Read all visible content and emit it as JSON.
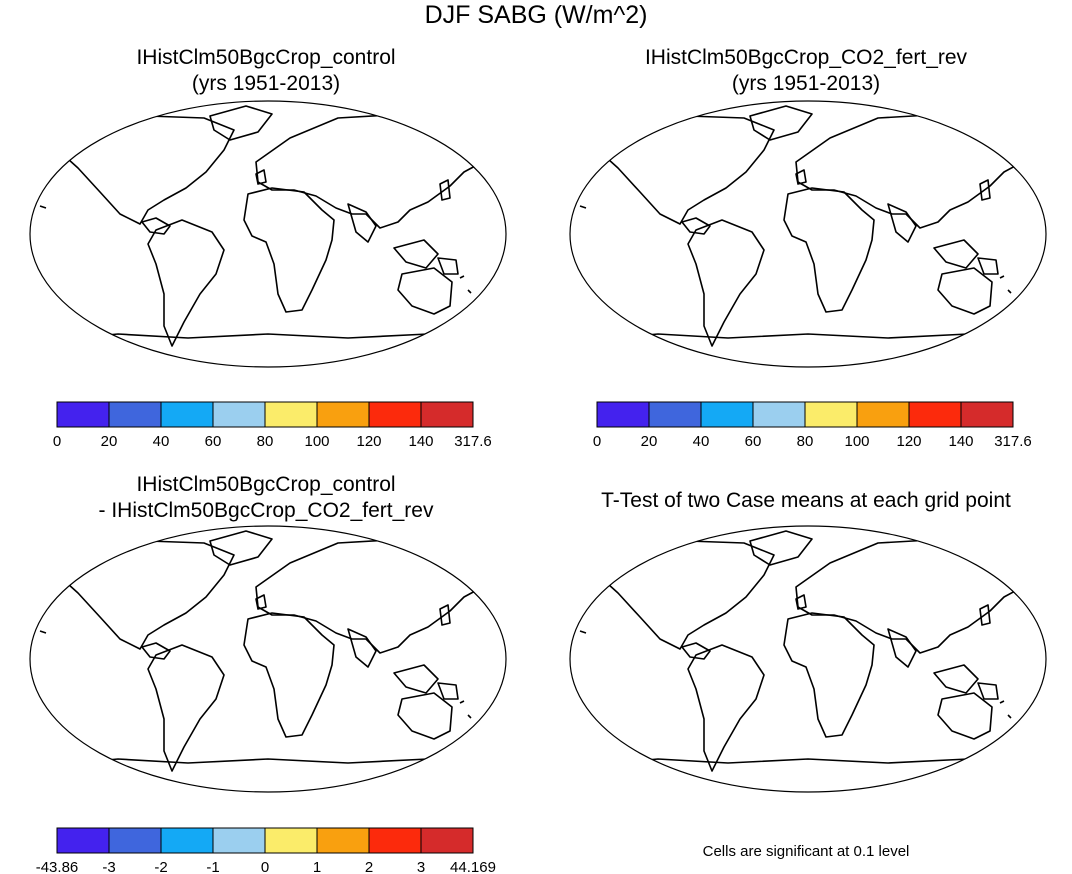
{
  "title": "DJF SABG (W/m^2)",
  "panels": [
    {
      "id": "p1",
      "title_line1": "IHistClm50BgcCrop_control",
      "title_line2": "(yrs 1951-2013)"
    },
    {
      "id": "p2",
      "title_line1": "IHistClm50BgcCrop_CO2_fert_rev",
      "title_line2": "(yrs 1951-2013)"
    },
    {
      "id": "p3",
      "title_line1": "IHistClm50BgcCrop_control",
      "title_line2": "- IHistClm50BgcCrop_CO2_fert_rev"
    },
    {
      "id": "p4",
      "title_line1": "T-Test of two Case means at each grid point",
      "title_line2": ""
    }
  ],
  "colorbars": {
    "absolute": {
      "colors": [
        "#4422ee",
        "#3f66dd",
        "#14a9f5",
        "#9bcfef",
        "#fbec6a",
        "#f9a00f",
        "#fc2a0c",
        "#d52b2b"
      ],
      "labels": [
        "0",
        "20",
        "40",
        "60",
        "80",
        "100",
        "120",
        "140",
        "317.6"
      ]
    },
    "difference": {
      "colors": [
        "#4422ee",
        "#3f66dd",
        "#14a9f5",
        "#9bcfef",
        "#fbec6a",
        "#f9a00f",
        "#fc2a0c",
        "#d52b2b"
      ],
      "labels": [
        "-43.86",
        "-3",
        "-2",
        "-1",
        "0",
        "1",
        "2",
        "3",
        "44.169"
      ]
    }
  },
  "note": "Cells are significant at 0.1 level"
}
